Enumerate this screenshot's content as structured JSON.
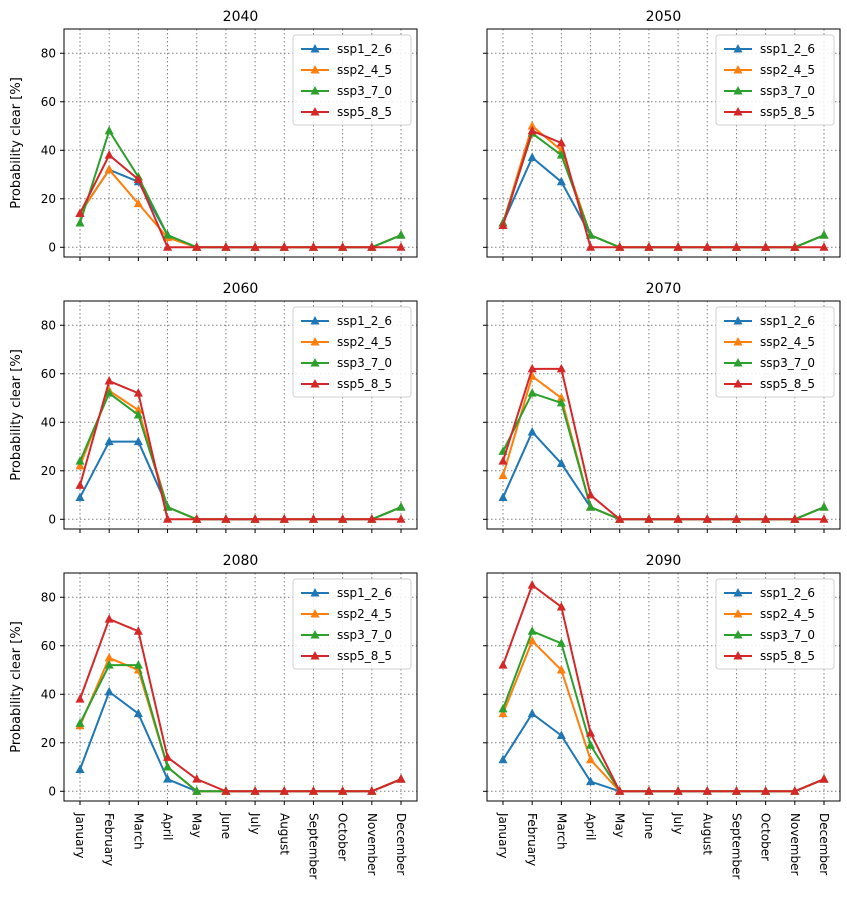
{
  "chart_data": {
    "type": "line",
    "ylabel": "Probability clear [%]",
    "ylim": [
      -4,
      90
    ],
    "yticks": [
      0,
      20,
      40,
      60,
      80
    ],
    "grid": true,
    "legend_position": "upper-right",
    "marker": "triangle",
    "categories": [
      "January",
      "February",
      "March",
      "April",
      "May",
      "June",
      "July",
      "August",
      "September",
      "October",
      "November",
      "December"
    ],
    "series_colors": {
      "ssp1_2_6": "#1f77b4",
      "ssp2_4_5": "#ff7f0e",
      "ssp3_7_0": "#2ca02c",
      "ssp5_8_5": "#d62728"
    },
    "panels": [
      {
        "title": "2040",
        "series": [
          {
            "name": "ssp1_2_6",
            "values": [
              14,
              32,
              27,
              5,
              0,
              0,
              0,
              0,
              0,
              0,
              0,
              5
            ]
          },
          {
            "name": "ssp2_4_5",
            "values": [
              14,
              32,
              18,
              4,
              0,
              0,
              0,
              0,
              0,
              0,
              0,
              5
            ]
          },
          {
            "name": "ssp3_7_0",
            "values": [
              10,
              48,
              29,
              5,
              0,
              0,
              0,
              0,
              0,
              0,
              0,
              5
            ]
          },
          {
            "name": "ssp5_8_5",
            "values": [
              14,
              38,
              28,
              0,
              0,
              0,
              0,
              0,
              0,
              0,
              0,
              0
            ]
          }
        ]
      },
      {
        "title": "2050",
        "series": [
          {
            "name": "ssp1_2_6",
            "values": [
              10,
              37,
              27,
              5,
              0,
              0,
              0,
              0,
              0,
              0,
              0,
              5
            ]
          },
          {
            "name": "ssp2_4_5",
            "values": [
              10,
              50,
              40,
              5,
              0,
              0,
              0,
              0,
              0,
              0,
              0,
              5
            ]
          },
          {
            "name": "ssp3_7_0",
            "values": [
              10,
              47,
              38,
              5,
              0,
              0,
              0,
              0,
              0,
              0,
              0,
              5
            ]
          },
          {
            "name": "ssp5_8_5",
            "values": [
              9,
              48,
              43,
              0,
              0,
              0,
              0,
              0,
              0,
              0,
              0,
              0
            ]
          }
        ]
      },
      {
        "title": "2060",
        "series": [
          {
            "name": "ssp1_2_6",
            "values": [
              9,
              32,
              32,
              5,
              0,
              0,
              0,
              0,
              0,
              0,
              0,
              5
            ]
          },
          {
            "name": "ssp2_4_5",
            "values": [
              22,
              53,
              45,
              5,
              0,
              0,
              0,
              0,
              0,
              0,
              0,
              5
            ]
          },
          {
            "name": "ssp3_7_0",
            "values": [
              24,
              52,
              43,
              5,
              0,
              0,
              0,
              0,
              0,
              0,
              0,
              5
            ]
          },
          {
            "name": "ssp5_8_5",
            "values": [
              14,
              57,
              52,
              0,
              0,
              0,
              0,
              0,
              0,
              0,
              0,
              0
            ]
          }
        ]
      },
      {
        "title": "2070",
        "series": [
          {
            "name": "ssp1_2_6",
            "values": [
              9,
              36,
              23,
              5,
              0,
              0,
              0,
              0,
              0,
              0,
              0,
              5
            ]
          },
          {
            "name": "ssp2_4_5",
            "values": [
              18,
              59,
              50,
              5,
              0,
              0,
              0,
              0,
              0,
              0,
              0,
              5
            ]
          },
          {
            "name": "ssp3_7_0",
            "values": [
              28,
              52,
              48,
              5,
              0,
              0,
              0,
              0,
              0,
              0,
              0,
              5
            ]
          },
          {
            "name": "ssp5_8_5",
            "values": [
              24,
              62,
              62,
              10,
              0,
              0,
              0,
              0,
              0,
              0,
              0,
              0
            ]
          }
        ]
      },
      {
        "title": "2080",
        "series": [
          {
            "name": "ssp1_2_6",
            "values": [
              9,
              41,
              32,
              5,
              0,
              0,
              0,
              0,
              0,
              0,
              0,
              5
            ]
          },
          {
            "name": "ssp2_4_5",
            "values": [
              27,
              55,
              50,
              10,
              0,
              0,
              0,
              0,
              0,
              0,
              0,
              5
            ]
          },
          {
            "name": "ssp3_7_0",
            "values": [
              28,
              52,
              52,
              10,
              0,
              0,
              0,
              0,
              0,
              0,
              0,
              5
            ]
          },
          {
            "name": "ssp5_8_5",
            "values": [
              38,
              71,
              66,
              14,
              5,
              0,
              0,
              0,
              0,
              0,
              0,
              5
            ]
          }
        ]
      },
      {
        "title": "2090",
        "series": [
          {
            "name": "ssp1_2_6",
            "values": [
              13,
              32,
              23,
              4,
              0,
              0,
              0,
              0,
              0,
              0,
              0,
              5
            ]
          },
          {
            "name": "ssp2_4_5",
            "values": [
              32,
              62,
              50,
              13,
              0,
              0,
              0,
              0,
              0,
              0,
              0,
              5
            ]
          },
          {
            "name": "ssp3_7_0",
            "values": [
              34,
              66,
              61,
              19,
              0,
              0,
              0,
              0,
              0,
              0,
              0,
              5
            ]
          },
          {
            "name": "ssp5_8_5",
            "values": [
              52,
              85,
              76,
              24,
              0,
              0,
              0,
              0,
              0,
              0,
              0,
              5
            ]
          }
        ]
      }
    ]
  }
}
